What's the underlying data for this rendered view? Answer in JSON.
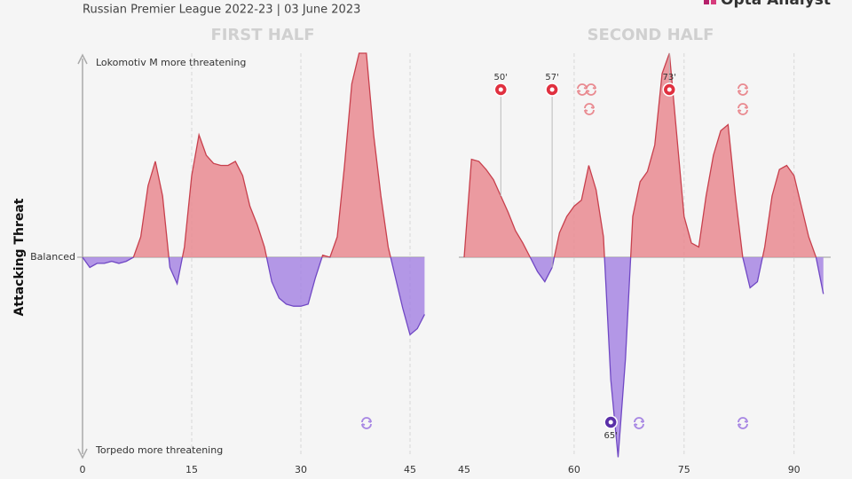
{
  "title": "Russian Premier League 2022-23 | 03 June 2023",
  "brand": "Opta Analyst",
  "ylabel": "Attacking Threat",
  "top_label": "Lokomotiv M more threatening",
  "bottom_label": "Torpedo more threatening",
  "chart_data": [
    {
      "type": "area",
      "title": "FIRST HALF",
      "x": [
        0,
        1,
        2,
        3,
        4,
        5,
        6,
        7,
        8,
        9,
        10,
        11,
        12,
        13,
        14,
        15,
        16,
        17,
        18,
        19,
        20,
        21,
        22,
        23,
        24,
        25,
        26,
        27,
        28,
        29,
        30,
        31,
        32,
        33,
        34,
        35,
        36,
        37,
        38,
        39,
        40,
        41,
        42,
        43,
        44,
        45,
        46,
        47
      ],
      "values": [
        0,
        -0.05,
        -0.03,
        -0.03,
        -0.02,
        -0.03,
        -0.02,
        0,
        0.1,
        0.35,
        0.47,
        0.3,
        -0.05,
        -0.13,
        0.05,
        0.4,
        0.6,
        0.5,
        0.46,
        0.45,
        0.45,
        0.47,
        0.4,
        0.25,
        0.16,
        0.05,
        -0.12,
        -0.2,
        -0.23,
        -0.24,
        -0.24,
        -0.23,
        -0.1,
        0.01,
        0,
        0.1,
        0.45,
        0.85,
        1.0,
        1.0,
        0.6,
        0.3,
        0.05,
        -0.1,
        -0.25,
        -0.38,
        -0.35,
        -0.28
      ],
      "color_positive": "#e98a90",
      "color_negative": "#a786e3",
      "line_positive": "#c8404d",
      "line_negative": "#7048c4",
      "xlim": [
        0,
        47
      ],
      "xticks": [
        0,
        15,
        30,
        45
      ],
      "ylim": [
        -1,
        1
      ],
      "yticks": [
        {
          "value": 0,
          "label": "Balanced"
        }
      ],
      "grid": true,
      "events": []
    },
    {
      "type": "area",
      "title": "SECOND HALF",
      "x": [
        45,
        46,
        47,
        48,
        49,
        50,
        51,
        52,
        53,
        54,
        55,
        56,
        57,
        58,
        59,
        60,
        61,
        62,
        63,
        64,
        65,
        66,
        67,
        68,
        69,
        70,
        71,
        72,
        73,
        74,
        75,
        76,
        77,
        78,
        79,
        80,
        81,
        82,
        83,
        84,
        85,
        86,
        87,
        88,
        89,
        90,
        91,
        92,
        93,
        94
      ],
      "values": [
        0,
        0.48,
        0.47,
        0.43,
        0.38,
        0.3,
        0.22,
        0.13,
        0.07,
        0,
        -0.07,
        -0.12,
        -0.05,
        0.12,
        0.2,
        0.25,
        0.28,
        0.45,
        0.33,
        0.1,
        -0.6,
        -0.98,
        -0.5,
        0.2,
        0.37,
        0.42,
        0.55,
        0.9,
        1.0,
        0.6,
        0.2,
        0.07,
        0.05,
        0.3,
        0.5,
        0.62,
        0.65,
        0.3,
        0,
        -0.15,
        -0.12,
        0.05,
        0.3,
        0.43,
        0.45,
        0.4,
        0.25,
        0.1,
        0,
        -0.18
      ],
      "color_positive": "#e98a90",
      "color_negative": "#a786e3",
      "line_positive": "#c8404d",
      "line_negative": "#7048c4",
      "xlim": [
        45,
        95
      ],
      "xticks": [
        45,
        60,
        75,
        90
      ],
      "ylim": [
        -1,
        1
      ],
      "yticks": [
        {
          "value": 0,
          "label": ""
        }
      ],
      "grid": true,
      "events": [
        {
          "minute": 50,
          "label": "50'",
          "color": "#e0303f",
          "side": "top"
        },
        {
          "minute": 57,
          "label": "57'",
          "color": "#e0303f",
          "side": "top"
        },
        {
          "minute": 73,
          "label": "73'",
          "color": "#e0303f",
          "side": "top"
        },
        {
          "minute": 65,
          "label": "65'",
          "color": "#5a2fa8",
          "side": "bottom"
        }
      ]
    }
  ]
}
